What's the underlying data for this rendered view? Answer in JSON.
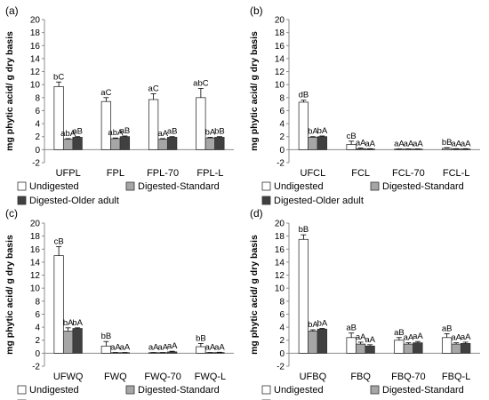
{
  "figure": {
    "ylabel": "mg phytic acid/ g dry basis",
    "legend_labels": [
      "Undigested",
      "Digested-Standard",
      "Digested-Older adult"
    ],
    "colors": {
      "Undigested": "#ffffff",
      "Digested-Standard": "#a6a6a6",
      "Digested-Older adult": "#404040"
    }
  },
  "chart_data": [
    {
      "panel_label": "(a)",
      "type": "bar",
      "ylabel": "mg phytic acid/ g dry basis",
      "ylim": [
        -2,
        20
      ],
      "yticks": [
        -2,
        0,
        2,
        4,
        6,
        8,
        10,
        12,
        14,
        16,
        18,
        20
      ],
      "categories": [
        "UFPL",
        "FPL",
        "FPL-70",
        "FPL-L"
      ],
      "series": [
        {
          "name": "Undigested",
          "values": [
            9.7,
            7.4,
            7.7,
            8.0
          ],
          "errors": [
            0.7,
            0.6,
            0.9,
            1.4
          ],
          "labels": [
            "bC",
            "aC",
            "aC",
            "abC"
          ]
        },
        {
          "name": "Digested-Standard",
          "values": [
            1.6,
            1.7,
            1.6,
            1.8
          ],
          "errors": [
            0.1,
            0.1,
            0.1,
            0.1
          ],
          "labels": [
            "abA",
            "abA",
            "aA",
            "bA"
          ]
        },
        {
          "name": "Digested-Older adult",
          "values": [
            1.9,
            2.0,
            1.9,
            1.9
          ],
          "errors": [
            0.1,
            0.1,
            0.1,
            0.1
          ],
          "labels": [
            "aB",
            "aB",
            "aB",
            "bB"
          ]
        }
      ],
      "legend_position": "bottom"
    },
    {
      "panel_label": "(b)",
      "type": "bar",
      "ylabel": "mg phytic acid/ g dry basis",
      "ylim": [
        -2,
        20
      ],
      "yticks": [
        -2,
        0,
        2,
        4,
        6,
        8,
        10,
        12,
        14,
        16,
        18,
        20
      ],
      "categories": [
        "UFCL",
        "FCL",
        "FCL-70",
        "FCL-L"
      ],
      "series": [
        {
          "name": "Undigested",
          "values": [
            7.3,
            0.8,
            0.05,
            0.2
          ],
          "errors": [
            0.3,
            0.5,
            0.05,
            0.1
          ],
          "labels": [
            "dB",
            "cB",
            "aA",
            "bB"
          ]
        },
        {
          "name": "Digested-Standard",
          "values": [
            1.9,
            0.15,
            0.05,
            0.1
          ],
          "errors": [
            0.1,
            0.1,
            0.05,
            0.05
          ],
          "labels": [
            "bA",
            "aA",
            "aA",
            "aA"
          ]
        },
        {
          "name": "Digested-Older adult",
          "values": [
            2.0,
            0.1,
            0.05,
            0.1
          ],
          "errors": [
            0.1,
            0.05,
            0.05,
            0.05
          ],
          "labels": [
            "bA",
            "aA",
            "aA",
            "aA"
          ]
        }
      ],
      "legend_position": "bottom"
    },
    {
      "panel_label": "(c)",
      "type": "bar",
      "ylabel": "mg phytic acid/ g dry basis",
      "ylim": [
        -2,
        20
      ],
      "yticks": [
        -2,
        0,
        2,
        4,
        6,
        8,
        10,
        12,
        14,
        16,
        18,
        20
      ],
      "categories": [
        "UFWQ",
        "FWQ",
        "FWQ-70",
        "FWQ-L"
      ],
      "series": [
        {
          "name": "Undigested",
          "values": [
            15.0,
            1.1,
            0.05,
            1.0
          ],
          "errors": [
            1.4,
            0.7,
            0.05,
            0.5
          ],
          "labels": [
            "cB",
            "bB",
            "aA",
            "bB"
          ]
        },
        {
          "name": "Digested-Standard",
          "values": [
            3.4,
            0.05,
            0.05,
            0.05
          ],
          "errors": [
            0.5,
            0.05,
            0.05,
            0.05
          ],
          "labels": [
            "bA",
            "aA",
            "aA",
            "aA"
          ]
        },
        {
          "name": "Digested-Older adult",
          "values": [
            3.8,
            0.05,
            0.2,
            0.1
          ],
          "errors": [
            0.1,
            0.05,
            0.1,
            0.05
          ],
          "labels": [
            "bA",
            "aA",
            "aA",
            "aA"
          ]
        }
      ],
      "legend_position": "bottom"
    },
    {
      "panel_label": "(d)",
      "type": "bar",
      "ylabel": "mg phytic acid/ g dry basis",
      "ylim": [
        -2,
        20
      ],
      "yticks": [
        -2,
        0,
        2,
        4,
        6,
        8,
        10,
        12,
        14,
        16,
        18,
        20
      ],
      "categories": [
        "UFBQ",
        "FBQ",
        "FBQ-70",
        "FBQ-L"
      ],
      "series": [
        {
          "name": "Undigested",
          "values": [
            17.5,
            2.4,
            2.0,
            2.4
          ],
          "errors": [
            0.7,
            0.7,
            0.4,
            0.6
          ],
          "labels": [
            "bB",
            "aB",
            "aB",
            "aB"
          ]
        },
        {
          "name": "Digested-Standard",
          "values": [
            3.4,
            1.4,
            1.4,
            1.4
          ],
          "errors": [
            0.2,
            0.3,
            0.2,
            0.2
          ],
          "labels": [
            "bA",
            "aA",
            "aA",
            "aA"
          ]
        },
        {
          "name": "Digested-Older adult",
          "values": [
            3.7,
            1.1,
            1.6,
            1.5
          ],
          "errors": [
            0.1,
            0.2,
            0.2,
            0.2
          ],
          "labels": [
            "bA",
            "aA",
            "aA",
            "aA"
          ]
        }
      ],
      "legend_position": "bottom"
    }
  ]
}
